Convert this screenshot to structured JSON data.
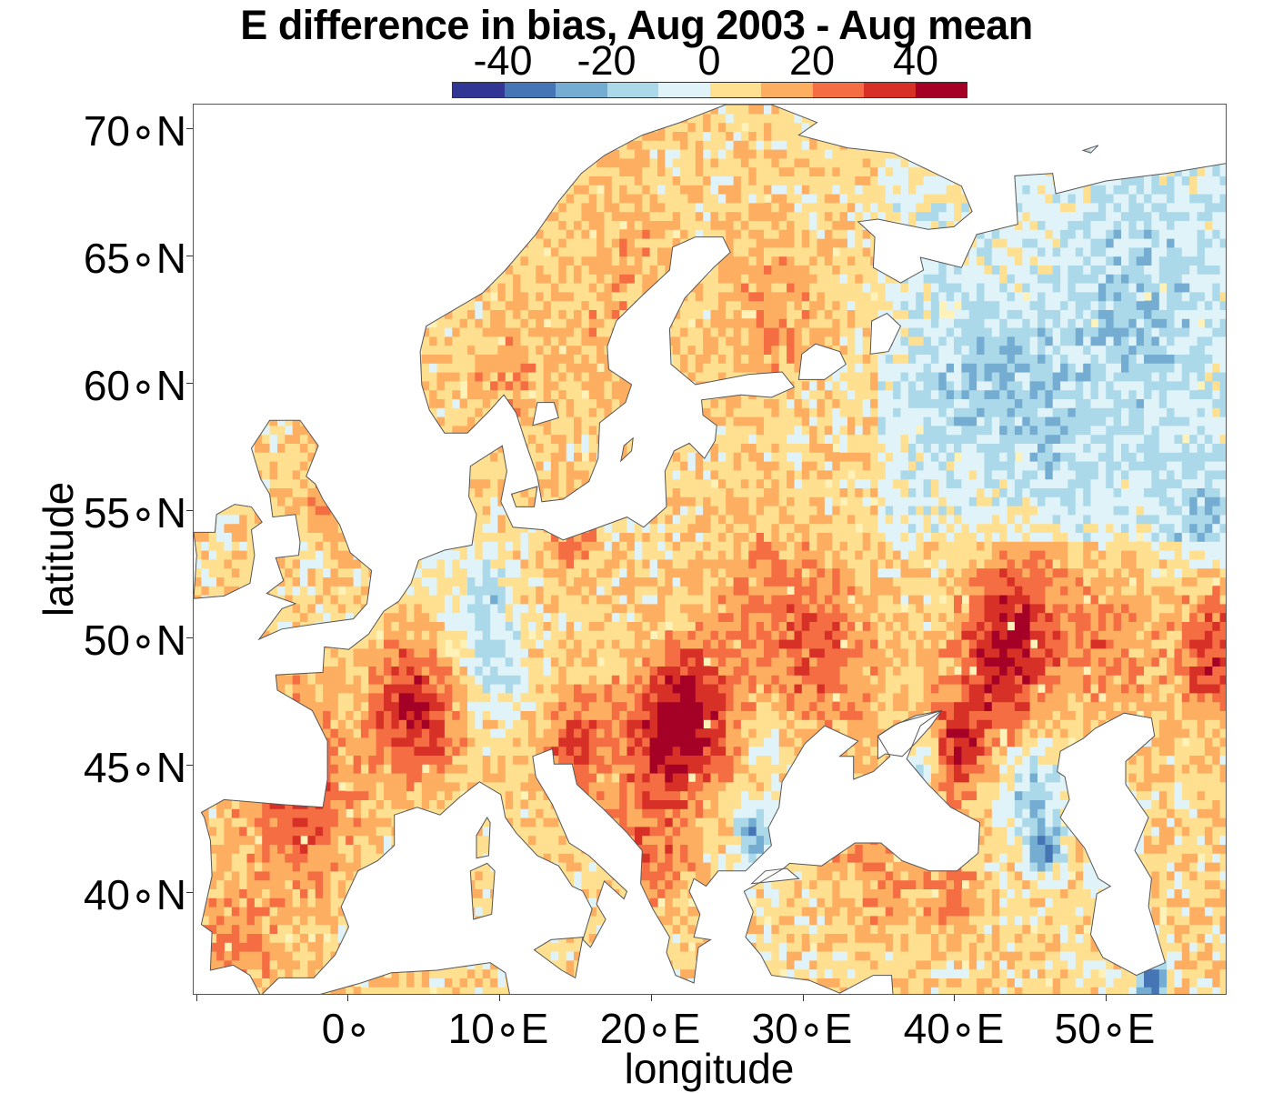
{
  "title": "E difference in bias, Aug 2003 - Aug mean",
  "colorbar": {
    "ticks": [
      "-40",
      "-20",
      "0",
      "20",
      "40"
    ],
    "colors": [
      "#313695",
      "#4575b4",
      "#74add1",
      "#abd9e9",
      "#e0f3f8",
      "#fee090",
      "#fdae61",
      "#f46d43",
      "#d73027",
      "#a50026"
    ]
  },
  "axes": {
    "x_title": "longitude",
    "y_title": "latitude",
    "x_ticks": [
      "0∘",
      "10∘E",
      "20∘E",
      "30∘E",
      "40∘E",
      "50∘E"
    ],
    "y_ticks": [
      "70∘N",
      "65∘N",
      "60∘N",
      "55∘N",
      "50∘N",
      "45∘N",
      "40∘N"
    ]
  },
  "map": {
    "lon_range": [
      -10,
      58
    ],
    "lat_range": [
      36,
      71
    ],
    "background": "#ffffff",
    "coast_color": "#555555"
  }
}
